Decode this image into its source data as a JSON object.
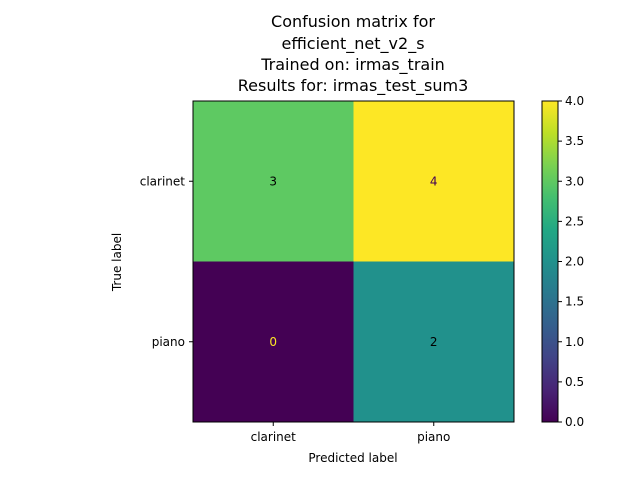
{
  "chart_data": {
    "type": "heatmap",
    "title": [
      "Confusion matrix for",
      "efficient_net_v2_s",
      "Trained on: irmas_train",
      "Results for: irmas_test_sum3"
    ],
    "xlabel": "Predicted label",
    "ylabel": "True label",
    "x_categories": [
      "clarinet",
      "piano"
    ],
    "y_categories": [
      "clarinet",
      "piano"
    ],
    "values": [
      [
        3,
        4
      ],
      [
        0,
        2
      ]
    ],
    "colormap": "viridis",
    "colorbar": {
      "range": [
        0.0,
        4.0
      ],
      "ticks": [
        "0.0",
        "0.5",
        "1.0",
        "1.5",
        "2.0",
        "2.5",
        "3.0",
        "3.5",
        "4.0"
      ]
    },
    "cell_colors": {
      "0": "#440154",
      "2": "#21918c",
      "3": "#5ec962",
      "4": "#fde725"
    },
    "annotation_colors": {
      "dark_cell": "#fde725",
      "light_cell": "#440154",
      "mid_cell": "#000000"
    }
  }
}
